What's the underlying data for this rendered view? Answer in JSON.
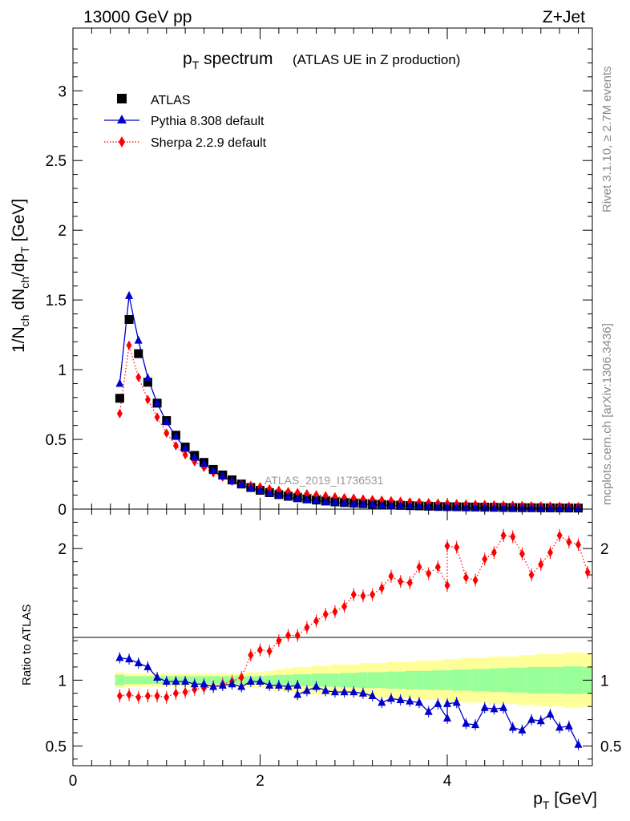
{
  "header": {
    "left": "13000 GeV pp",
    "right": "Z+Jet"
  },
  "side_labels": {
    "rivet": "Rivet 3.1.10, ≥ 2.7M events",
    "mcplots": "mcplots.cern.ch [arXiv:1306.3436]"
  },
  "chart_data": {
    "type": "scatter",
    "title_main": "p",
    "title_sub": "T",
    "title_rest": " spectrum",
    "title_note": "(ATLAS UE in Z production)",
    "watermark": "ATLAS_2019_I1736531",
    "ylabel_top": "1/N_ch dN_ch/dp_T [GeV]",
    "ylabel_ratio": "Ratio to ATLAS",
    "xlabel": "p_T [GeV]",
    "xlim": [
      0,
      5.55
    ],
    "ylim_top": [
      0,
      3.45
    ],
    "ylim_ratio": [
      0.35,
      2.3
    ],
    "x_ticks": [
      "0",
      "2",
      "4"
    ],
    "y_ticks_top": [
      "0",
      "0.5",
      "1",
      "1.5",
      "2",
      "2.5",
      "3"
    ],
    "y_ticks_ratio": [
      "0.5",
      "1",
      "2"
    ],
    "x": [
      0.5,
      0.6,
      0.7,
      0.8,
      0.9,
      1.0,
      1.1,
      1.2,
      1.3,
      1.4,
      1.5,
      1.6,
      1.7,
      1.8,
      1.9,
      2.0,
      2.1,
      2.2,
      2.3,
      2.4,
      2.5,
      2.6,
      2.7,
      2.8,
      2.9,
      3.0,
      3.1,
      3.2,
      3.3,
      3.4,
      3.5,
      3.6,
      3.7,
      3.8,
      3.9,
      4.0,
      4.1,
      4.2,
      4.3,
      4.4,
      4.5,
      4.6,
      4.7,
      4.8,
      4.9,
      5.0,
      5.1,
      5.2,
      5.3,
      5.4
    ],
    "series": [
      {
        "name": "ATLAS",
        "color": "#000000",
        "marker": "square",
        "values": [
          0.795,
          1.36,
          1.115,
          0.91,
          0.76,
          0.635,
          0.53,
          0.445,
          0.385,
          0.335,
          0.285,
          0.245,
          0.21,
          0.18,
          0.155,
          0.135,
          0.118,
          0.104,
          0.092,
          0.082,
          0.073,
          0.065,
          0.058,
          0.052,
          0.047,
          0.043,
          0.039,
          0.035,
          0.032,
          0.029,
          0.027,
          0.025,
          0.023,
          0.021,
          0.019,
          0.018,
          0.017,
          0.016,
          0.015,
          0.014,
          0.013,
          0.012,
          0.011,
          0.0105,
          0.01,
          0.0095,
          0.009,
          0.0085,
          0.008,
          0.0075
        ]
      },
      {
        "name": "Pythia 8.308 default",
        "color": "#0000cc",
        "marker": "triangle",
        "line": "solid",
        "values": [
          0.9,
          1.53,
          1.21,
          0.94,
          0.76,
          0.625,
          0.52,
          0.435,
          0.37,
          0.325,
          0.275,
          0.235,
          0.2,
          0.176,
          0.15,
          0.133,
          0.113,
          0.1,
          0.087,
          0.073,
          0.066,
          0.062,
          0.053,
          0.048,
          0.043,
          0.039,
          0.035,
          0.032,
          0.028,
          0.025,
          0.023,
          0.021,
          0.018,
          0.016,
          0.014,
          0.013,
          0.012,
          0.011,
          0.01,
          0.0095,
          0.0088,
          0.0082,
          0.0075,
          0.007,
          0.0065,
          0.006,
          0.0058,
          0.0055,
          0.0052,
          0.0048
        ]
      },
      {
        "name": "Sherpa 2.2.9 default",
        "color": "#ff0000",
        "marker": "diamond",
        "line": "dotted",
        "values": [
          0.685,
          1.175,
          0.945,
          0.785,
          0.66,
          0.545,
          0.455,
          0.39,
          0.34,
          0.3,
          0.26,
          0.23,
          0.2,
          0.18,
          0.17,
          0.16,
          0.145,
          0.135,
          0.125,
          0.118,
          0.11,
          0.102,
          0.095,
          0.088,
          0.082,
          0.078,
          0.072,
          0.068,
          0.064,
          0.06,
          0.056,
          0.052,
          0.049,
          0.046,
          0.043,
          0.04,
          0.038,
          0.036,
          0.034,
          0.032,
          0.03,
          0.028,
          0.027,
          0.025,
          0.024,
          0.023,
          0.022,
          0.021,
          0.02,
          0.019
        ]
      }
    ],
    "ratio": {
      "pythia": [
        1.17,
        1.16,
        1.13,
        1.1,
        1.02,
        0.99,
        0.99,
        0.99,
        0.97,
        0.97,
        0.95,
        0.96,
        0.97,
        0.95,
        0.99,
        0.99,
        0.96,
        0.96,
        0.95,
        0.96,
        0.89,
        0.92,
        0.95,
        0.92,
        0.91,
        0.91,
        0.91,
        0.9,
        0.88,
        0.83,
        0.86,
        0.85,
        0.84,
        0.83,
        0.76,
        0.82,
        0.71,
        0.82,
        0.83,
        0.67,
        0.66,
        0.79,
        0.78,
        0.79,
        0.64,
        0.62,
        0.7,
        0.69,
        0.74,
        0.64,
        0.65,
        0.51
      ],
      "pythia_x": [
        0.5,
        0.6,
        0.7,
        0.8,
        0.9,
        1.0,
        1.1,
        1.2,
        1.3,
        1.4,
        1.5,
        1.6,
        1.7,
        1.8,
        1.9,
        2.0,
        2.1,
        2.2,
        2.3,
        2.4,
        2.4,
        2.5,
        2.6,
        2.7,
        2.8,
        2.9,
        3.0,
        3.1,
        3.2,
        3.3,
        3.4,
        3.5,
        3.6,
        3.7,
        3.8,
        3.9,
        4.0,
        4.0,
        4.1,
        4.2,
        4.3,
        4.4,
        4.5,
        4.6,
        4.7,
        4.8,
        4.9,
        5.0,
        5.1,
        5.2,
        5.3,
        5.4
      ],
      "sherpa": [
        0.88,
        0.89,
        0.87,
        0.88,
        0.88,
        0.87,
        0.9,
        0.91,
        0.93,
        0.94,
        0.95,
        0.97,
        0.99,
        1.02,
        1.19,
        1.23,
        1.22,
        1.3,
        1.34,
        1.34,
        1.4,
        1.45,
        1.5,
        1.52,
        1.56,
        1.65,
        1.64,
        1.65,
        1.7,
        1.79,
        1.75,
        1.74,
        1.86,
        1.81,
        1.86,
        1.72,
        2.02,
        2.01,
        1.78,
        1.76,
        1.92,
        1.97,
        2.1,
        2.09,
        1.96,
        1.8,
        1.88,
        1.97,
        2.1,
        2.05,
        2.03,
        1.82
      ],
      "sherpa_x": [
        0.5,
        0.6,
        0.7,
        0.8,
        0.9,
        1.0,
        1.1,
        1.2,
        1.3,
        1.4,
        1.5,
        1.6,
        1.7,
        1.8,
        1.9,
        2.0,
        2.1,
        2.2,
        2.3,
        2.4,
        2.5,
        2.6,
        2.7,
        2.8,
        2.9,
        3.0,
        3.1,
        3.2,
        3.3,
        3.4,
        3.5,
        3.6,
        3.7,
        3.8,
        3.9,
        4.0,
        4.0,
        4.1,
        4.2,
        4.3,
        4.4,
        4.5,
        4.6,
        4.7,
        4.8,
        4.9,
        5.0,
        5.1,
        5.2,
        5.3,
        5.4,
        5.5
      ],
      "band_x": [
        0.45,
        0.55,
        0.65,
        0.75,
        0.85,
        0.95,
        1.05,
        1.15,
        1.25,
        1.35,
        1.45,
        1.55,
        1.65,
        1.75,
        1.85,
        1.95,
        2.05,
        2.15,
        2.25,
        2.35,
        2.45,
        2.55,
        2.65,
        2.75,
        2.85,
        2.95,
        3.05,
        3.15,
        3.25,
        3.35,
        3.45,
        3.55,
        3.65,
        3.75,
        3.85,
        3.95,
        4.05,
        4.15,
        4.25,
        4.35,
        4.45,
        4.55,
        4.65,
        4.75,
        4.85,
        4.95,
        5.05,
        5.15,
        5.25,
        5.35,
        5.45,
        5.55
      ],
      "band_green": [
        0.04,
        0.03,
        0.03,
        0.03,
        0.03,
        0.03,
        0.03,
        0.03,
        0.03,
        0.03,
        0.03,
        0.03,
        0.03,
        0.03,
        0.03,
        0.03,
        0.035,
        0.04,
        0.04,
        0.045,
        0.045,
        0.05,
        0.05,
        0.05,
        0.055,
        0.055,
        0.06,
        0.06,
        0.06,
        0.065,
        0.065,
        0.07,
        0.07,
        0.07,
        0.075,
        0.075,
        0.08,
        0.08,
        0.085,
        0.085,
        0.09,
        0.09,
        0.095,
        0.095,
        0.1,
        0.1,
        0.1,
        0.1,
        0.105,
        0.105,
        0.1,
        0.1
      ],
      "band_yellow": [
        0.06,
        0.05,
        0.05,
        0.05,
        0.05,
        0.05,
        0.05,
        0.05,
        0.05,
        0.05,
        0.05,
        0.05,
        0.05,
        0.05,
        0.06,
        0.06,
        0.07,
        0.08,
        0.09,
        0.1,
        0.1,
        0.11,
        0.11,
        0.12,
        0.12,
        0.12,
        0.13,
        0.13,
        0.13,
        0.14,
        0.14,
        0.14,
        0.15,
        0.15,
        0.15,
        0.16,
        0.16,
        0.17,
        0.17,
        0.17,
        0.18,
        0.18,
        0.18,
        0.19,
        0.19,
        0.2,
        0.2,
        0.2,
        0.21,
        0.21,
        0.2,
        0.2
      ]
    }
  }
}
